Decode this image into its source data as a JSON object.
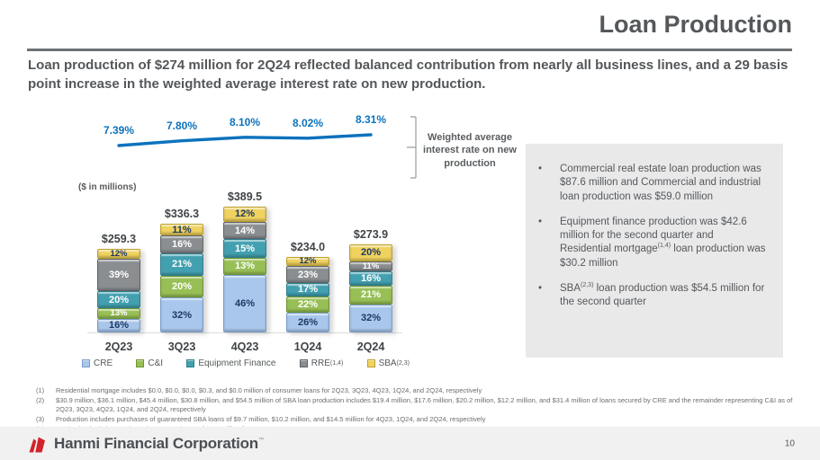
{
  "slide": {
    "title": "Loan Production",
    "subtitle": "Loan production of $274 million for 2Q24 reflected balanced contribution from nearly all business lines, and a 29 basis point increase in the weighted average interest rate on new production.",
    "page_number": "10",
    "brand": "Hanmi Financial Corporation",
    "brand_mark": "™"
  },
  "chart_data": {
    "type": "combo_stacked_bar_line",
    "units_label": "($ in millions)",
    "categories": [
      "2Q23",
      "3Q23",
      "4Q23",
      "1Q24",
      "2Q24"
    ],
    "totals": [
      259.3,
      336.3,
      389.5,
      234.0,
      273.9
    ],
    "total_labels": [
      "$259.3",
      "$336.3",
      "$389.5",
      "$234.0",
      "$273.9"
    ],
    "bar_axis_max": 389.5,
    "series": [
      {
        "name": "CRE",
        "sup": "",
        "color": "#A9C7EC",
        "border": "#7A9CC9",
        "label_color": "#1F3864",
        "pct": [
          16,
          32,
          46,
          26,
          32
        ]
      },
      {
        "name": "C&I",
        "sup": "",
        "color": "#97BF55",
        "border": "#6E9434",
        "label_color": "#FFFFFF",
        "pct": [
          13,
          20,
          13,
          22,
          21
        ]
      },
      {
        "name": "Equipment Finance",
        "sup": "",
        "color": "#42A0B0",
        "border": "#2D7E8D",
        "label_color": "#FFFFFF",
        "pct": [
          20,
          21,
          15,
          17,
          16
        ]
      },
      {
        "name": "RRE",
        "sup": "(1,4)",
        "color": "#8A8E91",
        "border": "#5E6265",
        "label_color": "#FFFFFF",
        "pct": [
          39,
          16,
          14,
          23,
          11
        ]
      },
      {
        "name": "SBA",
        "sup": "(2,3)",
        "color": "#EFD25F",
        "border": "#BDA02F",
        "label_color": "#1F3864",
        "pct": [
          12,
          11,
          12,
          12,
          20
        ]
      }
    ],
    "line": {
      "name": "Weighted average interest rate on new production",
      "values": [
        7.39,
        7.8,
        8.1,
        8.02,
        8.31
      ],
      "labels": [
        "7.39%",
        "7.80%",
        "8.10%",
        "8.02%",
        "8.31%"
      ],
      "color": "#0D72BD"
    },
    "legend_position": "bottom",
    "grid": false
  },
  "callout": {
    "bullets": [
      [
        {
          "t": "Commercial real estate loan production was $87.6 million and Commercial and industrial loan production was $59.0 million"
        }
      ],
      [
        {
          "t": "Equipment finance production was $42.6 million for the second quarter and Residential mortgage"
        },
        {
          "sup": "(1,4)"
        },
        {
          "t": " loan production was $30.2 million"
        }
      ],
      [
        {
          "t": "SBA"
        },
        {
          "sup": "(2,3)"
        },
        {
          "t": " loan production was $54.5 million for the second quarter"
        }
      ]
    ]
  },
  "footnotes": [
    {
      "num": "(1)",
      "text": "Residential mortgage includes $0.0, $0.0, $0.0, $0.3, and $0.0 million of consumer loans for 2Q23, 3Q23, 4Q23, 1Q24, and 2Q24, respectively"
    },
    {
      "num": "(2)",
      "text": "$30.9 million, $36.1 million, $45.4 million, $30.8 million, and $54.5 million of SBA loan production includes $19.4 million, $17.6 million, $20.2 million, $12.2 million, and $31.4 million of loans secured by CRE and the remainder representing C&I as of 2Q23, 3Q23, 4Q23, 1Q24, and 2Q24, respectively"
    },
    {
      "num": "(3)",
      "text": "Production includes purchases of guaranteed SBA loans of $9.7 million, $10.2 million, and $14.5 million for 4Q23, 1Q24, and 2Q24, respectively"
    },
    {
      "num": "(4)",
      "text": "Production includes purchased mortgage loans of $5.2 million for 2Q24."
    }
  ]
}
